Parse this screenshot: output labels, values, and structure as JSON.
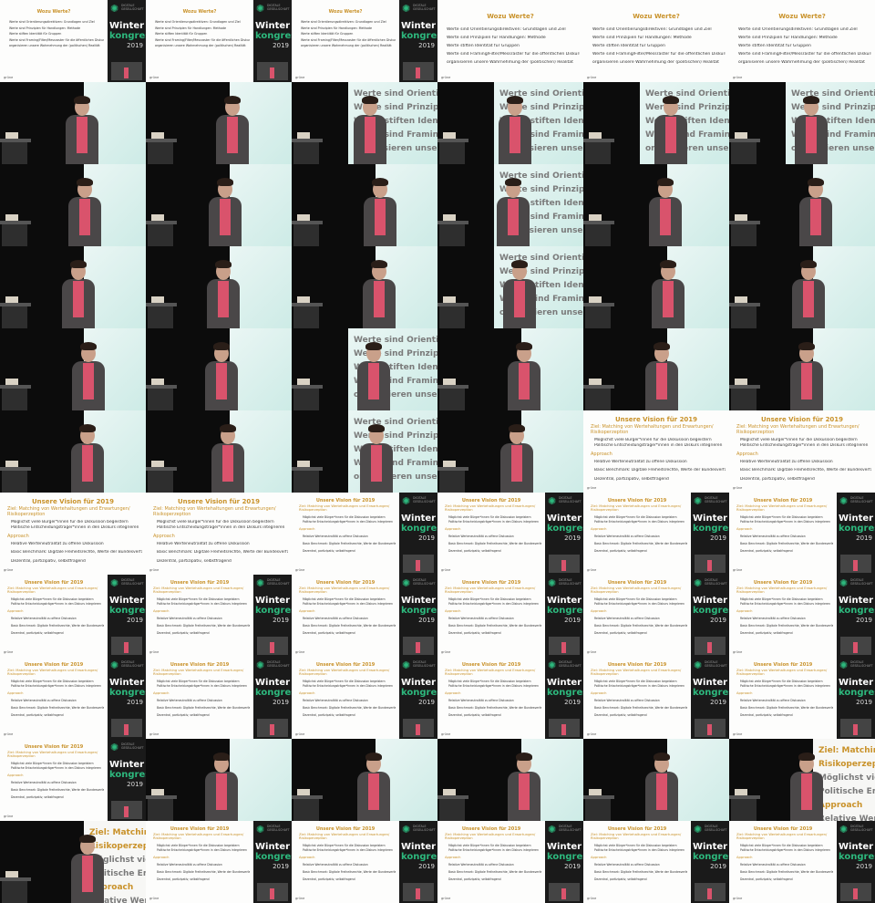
{
  "slides": {
    "werte": {
      "title": "Wozu Werte?",
      "lines": [
        "Werte sind Orientierungsdirektiven: Grundlagen und Ziel",
        "Werte sind Prinzipien für Handlungen: Methode",
        "Werte stiften Identität für Gruppen",
        "Werte sind Framing/Filter/Messraster für die öffentlichen Diskurs: sie",
        "organisieren unsere Wahrnehmung der (politischen) Realität"
      ],
      "footer": "grüne"
    },
    "vision": {
      "title": "Unsere Vision für 2019",
      "goal": "Ziel: Matching von Wertehaltungen und Erwartungen/ Risikoperzeption",
      "goal_lines": [
        "Möglichst viele Bürger*innen für die Diskussion begeistern",
        "Politische Entscheidungsträger*innen in den Diskurs integrieren"
      ],
      "approach": "Approach",
      "approach_lines": [
        "Relative Werteneutralität zu offene Diskussion",
        "Basic Benchmark: Digitale Freiheitsrechte, Werte der Bundesverfassung",
        "Dezentral, partizipativ, selbstfragend"
      ],
      "footer": "grüne"
    }
  },
  "branding": {
    "org": "DIGITALE GESELLSCHAFT",
    "word1": "Winter",
    "word2": "kongress",
    "year": "2019"
  },
  "screen_text": [
    "Werte sind Orientierungsdirek",
    "Werte sind Prinzipien für Hand",
    "Werte stiften Identität für Gru",
    "Werte sind Framing/Filter/Mess",
    "organisieren unsere Wahrne"
  ],
  "screen_text_vision": [
    "Ziel: Matching",
    "Risikoperzeption",
    "Möglichst viele Bürg",
    "Politische Entscheid",
    "Approach",
    "Relative Werteneutr"
  ],
  "colors": {
    "accent_gold": "#c9922a",
    "accent_green": "#2db87d",
    "shirt": "#d9536c",
    "jacket": "#4a4748"
  }
}
